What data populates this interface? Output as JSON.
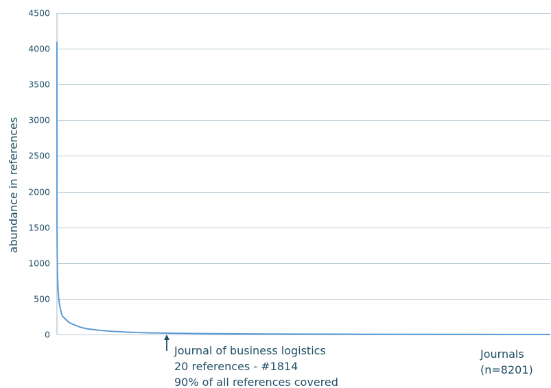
{
  "chart_data": {
    "type": "line",
    "title": "",
    "xlabel": "Journals",
    "xlabel_note": "(n=8201)",
    "ylabel": "abundance in references",
    "ylim": [
      0,
      4500
    ],
    "xlim": [
      1,
      8201
    ],
    "y_ticks": [
      0,
      500,
      1000,
      1500,
      2000,
      2500,
      3000,
      3500,
      4000,
      4500
    ],
    "y_tick_labels": [
      "0",
      "500",
      "1000",
      "1500",
      "2000",
      "2500",
      "3000",
      "3500",
      "4000",
      "4500"
    ],
    "grid": true,
    "series_color": "#5b9bd5",
    "series": [
      {
        "x": [
          1,
          2,
          5,
          10,
          15,
          20,
          30,
          40,
          60,
          80,
          100,
          150,
          200,
          300,
          400,
          500,
          700,
          900,
          1200,
          1500,
          1814,
          2500,
          3500,
          5000,
          6500,
          8201
        ],
        "values": [
          4100,
          1500,
          1150,
          820,
          720,
          620,
          520,
          440,
          350,
          280,
          250,
          210,
          170,
          130,
          100,
          80,
          60,
          45,
          32,
          24,
          20,
          12,
          7,
          4,
          2,
          1
        ]
      }
    ],
    "annotation": {
      "x": 1814,
      "y": 20,
      "lines": [
        "Journal of business logistics",
        "20 references - #1814",
        "90% of all references covered"
      ]
    }
  }
}
